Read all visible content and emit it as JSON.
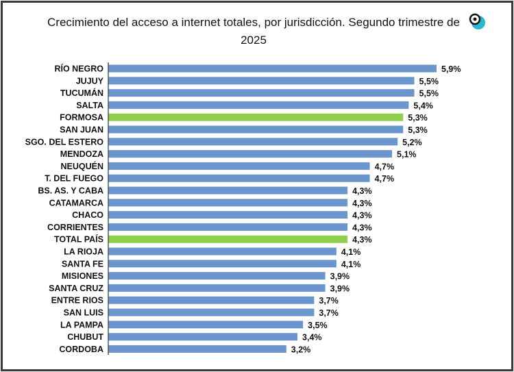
{
  "chart_data": {
    "type": "bar",
    "orientation": "horizontal",
    "title": "Crecimiento del acceso a internet totales, por jurisdicción. Segundo trimestre de 2025",
    "categories": [
      "RÍO NEGRO",
      "JUJUY",
      "TUCUMÁN",
      "SALTA",
      "FORMOSA",
      "SAN JUAN",
      "SGO. DEL ESTERO",
      "MENDOZA",
      "NEUQUÉN",
      "T. DEL FUEGO",
      "BS. AS. Y CABA",
      "CATAMARCA",
      "CHACO",
      "CORRIENTES",
      "TOTAL PAÍS",
      "LA RIOJA",
      "SANTA FE",
      "MISIONES",
      "SANTA CRUZ",
      "ENTRE RIOS",
      "SAN LUIS",
      "LA PAMPA",
      "CHUBUT",
      "CORDOBA"
    ],
    "values": [
      5.9,
      5.5,
      5.5,
      5.4,
      5.3,
      5.3,
      5.2,
      5.1,
      4.7,
      4.7,
      4.3,
      4.3,
      4.3,
      4.3,
      4.3,
      4.1,
      4.1,
      3.9,
      3.9,
      3.7,
      3.7,
      3.5,
      3.4,
      3.2
    ],
    "data_labels": [
      "5,9%",
      "5,5%",
      "5,5%",
      "5,4%",
      "5,3%",
      "5,3%",
      "5,2%",
      "5,1%",
      "4,7%",
      "4,7%",
      "4,3%",
      "4,3%",
      "4,3%",
      "4,3%",
      "4,3%",
      "4,1%",
      "4,1%",
      "3,9%",
      "3,9%",
      "3,7%",
      "3,7%",
      "3,5%",
      "3,4%",
      "3,2%"
    ],
    "highlighted": [
      "FORMOSA",
      "TOTAL PAÍS"
    ],
    "xlabel": "",
    "ylabel": "",
    "xlim": [
      0,
      5.9
    ],
    "grid": false,
    "legend": "none",
    "colors": {
      "bar": "#6b96cd",
      "highlight": "#8fce4a"
    }
  },
  "logo": {
    "icon": "magnifier-logo-icon",
    "color": "#2ab7cf"
  }
}
